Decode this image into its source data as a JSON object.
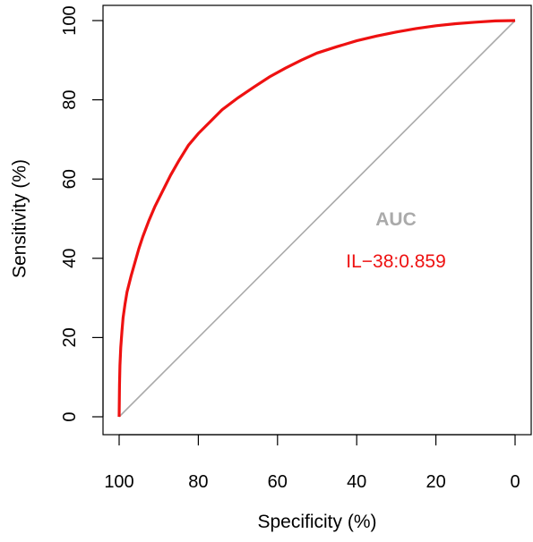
{
  "chart_data": {
    "type": "line",
    "title": "",
    "xlabel": "Specificity (%)",
    "ylabel": "Sensitivity (%)",
    "xlim": [
      100,
      0
    ],
    "ylim": [
      0,
      100
    ],
    "x_reversed": true,
    "xticks": [
      "100",
      "80",
      "60",
      "40",
      "20",
      "0"
    ],
    "yticks": [
      "0",
      "20",
      "40",
      "60",
      "80",
      "100"
    ],
    "grid": false,
    "series": [
      {
        "name": "IL−38",
        "color": "#ee1111",
        "points": [
          [
            100,
            0
          ],
          [
            99.9,
            8
          ],
          [
            99.8,
            13
          ],
          [
            99.6,
            17.5
          ],
          [
            99.3,
            21.5
          ],
          [
            99,
            25
          ],
          [
            98.5,
            28.5
          ],
          [
            98,
            31.5
          ],
          [
            97,
            35.5
          ],
          [
            96,
            39
          ],
          [
            95,
            42.5
          ],
          [
            94,
            45.5
          ],
          [
            92.5,
            49.5
          ],
          [
            91,
            53
          ],
          [
            89,
            57
          ],
          [
            87,
            61
          ],
          [
            85,
            64.5
          ],
          [
            82.5,
            68.5
          ],
          [
            80,
            71.5
          ],
          [
            77,
            74.5
          ],
          [
            74,
            77.5
          ],
          [
            70,
            80.5
          ],
          [
            66,
            83.2
          ],
          [
            62,
            85.8
          ],
          [
            58,
            88
          ],
          [
            54,
            90
          ],
          [
            50,
            91.8
          ],
          [
            45,
            93.4
          ],
          [
            40,
            94.9
          ],
          [
            35,
            96.1
          ],
          [
            30,
            97.1
          ],
          [
            25,
            98
          ],
          [
            20,
            98.7
          ],
          [
            15,
            99.2
          ],
          [
            10,
            99.6
          ],
          [
            5,
            99.9
          ],
          [
            0,
            100
          ]
        ]
      }
    ],
    "reference_line": {
      "color": "#aaaaaa",
      "from": [
        100,
        0
      ],
      "to": [
        0,
        100
      ]
    },
    "annotations": {
      "auc_title": "AUC",
      "auc_title_color": "#aaaaaa",
      "auc_value": "IL−38:0.859",
      "auc_value_color": "#ee1111"
    }
  }
}
